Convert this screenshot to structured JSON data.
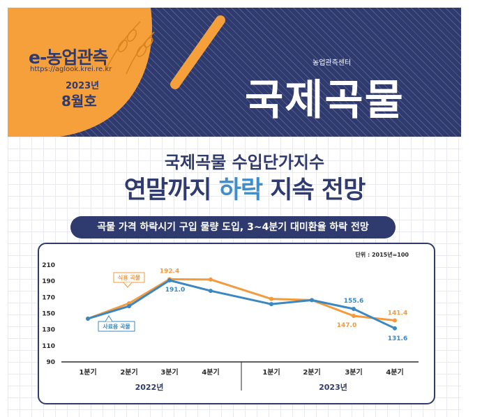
{
  "header": {
    "logo_title": "e-농업관측",
    "logo_url": "https://aglook.krei.re.kr",
    "issue_year": "2023년",
    "issue_month": "8월호",
    "center_name": "농업관측센터",
    "main_title": "국제곡물"
  },
  "headline": {
    "line1": "국제곡물 수입단가지수",
    "line2_before": "연말까지 ",
    "line2_highlight": "하락",
    "line2_after": " 지속 전망"
  },
  "banner": "곡물 가격 하락시기 구입 물량 도입, 3~4분기 대미환율 하락 전망",
  "colors": {
    "navy": "#2f3a6e",
    "orange": "#f39a3c",
    "blue": "#3a87c1",
    "header_orange": "#f5a03a"
  },
  "chart_data": {
    "type": "line",
    "unit": "단위 : 2015년=100",
    "categories": [
      "1분기",
      "2분기",
      "3분기",
      "4분기",
      "1분기",
      "2분기",
      "3분기",
      "4분기"
    ],
    "groups": [
      {
        "label": "2022년",
        "count": 4
      },
      {
        "label": "2023년",
        "count": 4
      }
    ],
    "ylim": [
      90,
      210
    ],
    "yticks": [
      210,
      190,
      170,
      150,
      130,
      110,
      90
    ],
    "series": [
      {
        "name": "식용 곡물",
        "color": "#f39a3c",
        "values": [
          143.5,
          162.5,
          192.4,
          192.0,
          168.0,
          166.5,
          147.0,
          141.4
        ],
        "labels": [
          null,
          null,
          "192.4",
          null,
          null,
          null,
          "147.0",
          "141.4"
        ]
      },
      {
        "name": "사료용 곡물",
        "color": "#3a87c1",
        "values": [
          143.5,
          159.0,
          191.0,
          178.0,
          161.5,
          166.5,
          155.6,
          131.6
        ],
        "labels": [
          null,
          null,
          "191.0",
          null,
          null,
          null,
          "155.6",
          "131.6"
        ]
      }
    ]
  }
}
